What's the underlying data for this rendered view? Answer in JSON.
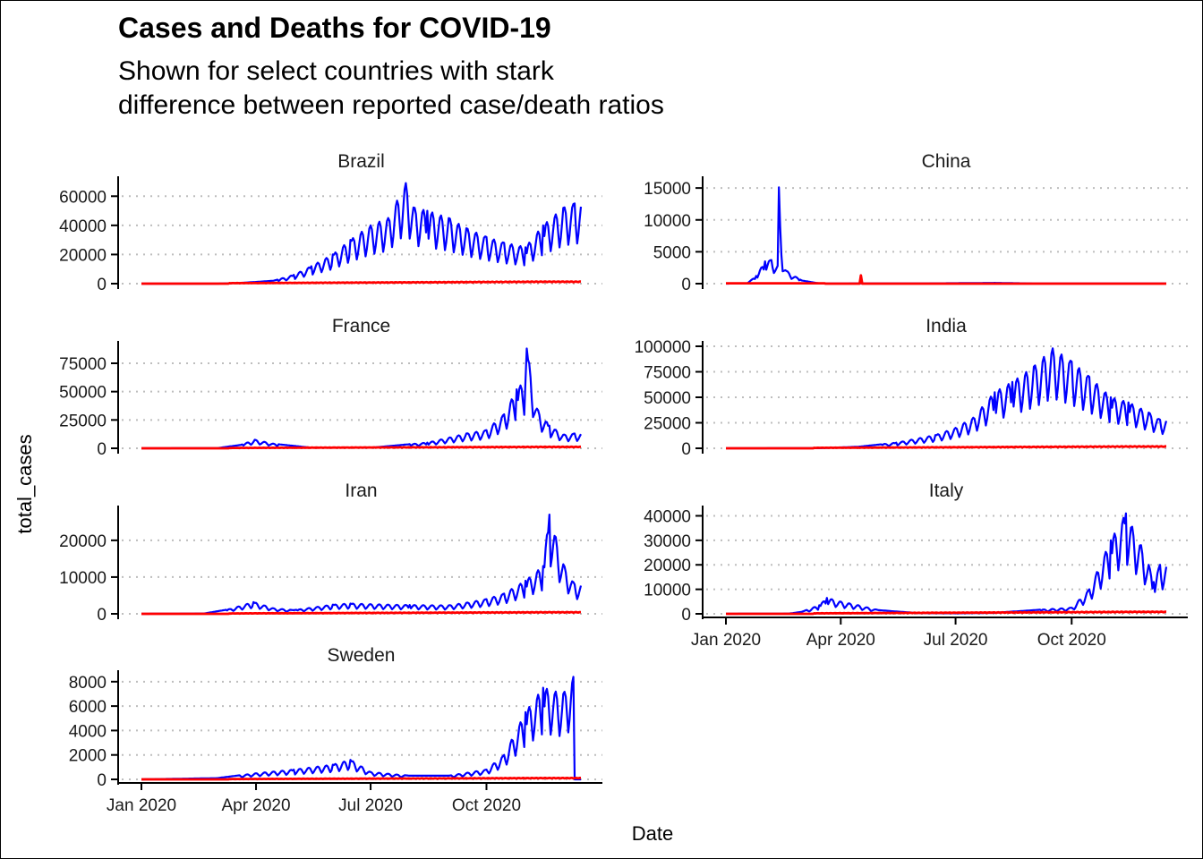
{
  "chart_data": {
    "type": "line",
    "title": "Cases and Deaths for COVID-19",
    "subtitle_lines": [
      "Shown for select countries with stark",
      "difference between reported case/death ratios"
    ],
    "xlabel": "Date",
    "ylabel": "total_cases",
    "x_ticks": [
      "Jan 2020",
      "Apr 2020",
      "Jul 2020",
      "Oct 2020"
    ],
    "x_range": [
      "2020-01-01",
      "2020-12-15"
    ],
    "grid": "horizontal-dotted",
    "legend": "none",
    "colors": {
      "cases": "#0000ff",
      "deaths": "#ff0000",
      "grid": "#bdbdbd"
    },
    "panels": [
      {
        "country": "Brazil",
        "ylim": [
          0,
          70000
        ],
        "y_ticks": [
          "0",
          "20000",
          "40000",
          "60000"
        ],
        "cases_weekly_peaks": [
          [
            "2020-01-01",
            0
          ],
          [
            "2020-03-01",
            0
          ],
          [
            "2020-03-20",
            500
          ],
          [
            "2020-04-15",
            2000
          ],
          [
            "2020-05-01",
            6000
          ],
          [
            "2020-05-15",
            12000
          ],
          [
            "2020-06-01",
            20000
          ],
          [
            "2020-06-15",
            30000
          ],
          [
            "2020-07-01",
            40000
          ],
          [
            "2020-07-15",
            45000
          ],
          [
            "2020-07-29",
            69000
          ],
          [
            "2020-08-05",
            52000
          ],
          [
            "2020-08-15",
            50000
          ],
          [
            "2020-09-01",
            45000
          ],
          [
            "2020-09-15",
            38000
          ],
          [
            "2020-10-01",
            32000
          ],
          [
            "2020-10-15",
            28000
          ],
          [
            "2020-11-01",
            25000
          ],
          [
            "2020-11-15",
            40000
          ],
          [
            "2020-12-01",
            52000
          ],
          [
            "2020-12-10",
            55000
          ]
        ],
        "deaths_peak": 1500
      },
      {
        "country": "China",
        "ylim": [
          0,
          16000
        ],
        "y_ticks": [
          "0",
          "5000",
          "10000",
          "15000"
        ],
        "cases_weekly_peaks": [
          [
            "2020-01-01",
            0
          ],
          [
            "2020-01-18",
            50
          ],
          [
            "2020-01-25",
            1200
          ],
          [
            "2020-02-01",
            3500
          ],
          [
            "2020-02-06",
            3700
          ],
          [
            "2020-02-11",
            2800
          ],
          [
            "2020-02-12",
            15100
          ],
          [
            "2020-02-14",
            4500
          ],
          [
            "2020-02-18",
            2000
          ],
          [
            "2020-03-01",
            500
          ],
          [
            "2020-03-15",
            30
          ],
          [
            "2020-06-15",
            50
          ],
          [
            "2020-08-01",
            120
          ],
          [
            "2020-09-01",
            30
          ],
          [
            "2020-12-10",
            20
          ]
        ],
        "deaths_peak": 1290
      },
      {
        "country": "France",
        "ylim": [
          0,
          90000
        ],
        "y_ticks": [
          "0",
          "25000",
          "50000",
          "75000"
        ],
        "cases_weekly_peaks": [
          [
            "2020-01-01",
            0
          ],
          [
            "2020-03-01",
            100
          ],
          [
            "2020-03-20",
            3000
          ],
          [
            "2020-03-31",
            7500
          ],
          [
            "2020-04-15",
            4000
          ],
          [
            "2020-05-15",
            500
          ],
          [
            "2020-07-01",
            500
          ],
          [
            "2020-08-15",
            5000
          ],
          [
            "2020-09-15",
            13000
          ],
          [
            "2020-10-01",
            16000
          ],
          [
            "2020-10-15",
            30000
          ],
          [
            "2020-10-25",
            52000
          ],
          [
            "2020-11-01",
            60000
          ],
          [
            "2020-11-02",
            88000
          ],
          [
            "2020-11-10",
            35000
          ],
          [
            "2020-11-20",
            20000
          ],
          [
            "2020-12-01",
            12000
          ],
          [
            "2020-12-10",
            13000
          ]
        ],
        "deaths_peak": 1400
      },
      {
        "country": "India",
        "ylim": [
          0,
          100000
        ],
        "y_ticks": [
          "0",
          "25000",
          "50000",
          "75000",
          "100000"
        ],
        "cases_weekly_peaks": [
          [
            "2020-01-01",
            0
          ],
          [
            "2020-03-15",
            100
          ],
          [
            "2020-04-15",
            1500
          ],
          [
            "2020-05-15",
            5500
          ],
          [
            "2020-06-15",
            13000
          ],
          [
            "2020-07-01",
            20000
          ],
          [
            "2020-07-15",
            30000
          ],
          [
            "2020-08-01",
            55000
          ],
          [
            "2020-08-15",
            65000
          ],
          [
            "2020-09-01",
            80000
          ],
          [
            "2020-09-16",
            98000
          ],
          [
            "2020-10-01",
            85000
          ],
          [
            "2020-10-15",
            70000
          ],
          [
            "2020-11-01",
            50000
          ],
          [
            "2020-11-15",
            45000
          ],
          [
            "2020-12-01",
            35000
          ],
          [
            "2020-12-10",
            28000
          ]
        ],
        "deaths_peak": 2000
      },
      {
        "country": "Iran",
        "ylim": [
          0,
          28000
        ],
        "y_ticks": [
          "0",
          "10000",
          "20000"
        ],
        "cases_weekly_peaks": [
          [
            "2020-01-01",
            0
          ],
          [
            "2020-02-20",
            100
          ],
          [
            "2020-03-10",
            1200
          ],
          [
            "2020-03-30",
            3200
          ],
          [
            "2020-04-15",
            1500
          ],
          [
            "2020-05-01",
            1000
          ],
          [
            "2020-06-01",
            2500
          ],
          [
            "2020-06-15",
            2800
          ],
          [
            "2020-07-15",
            2500
          ],
          [
            "2020-08-01",
            2400
          ],
          [
            "2020-09-01",
            2300
          ],
          [
            "2020-09-15",
            3000
          ],
          [
            "2020-10-01",
            4000
          ],
          [
            "2020-10-15",
            5500
          ],
          [
            "2020-11-01",
            9000
          ],
          [
            "2020-11-15",
            13000
          ],
          [
            "2020-11-20",
            27000
          ],
          [
            "2020-12-01",
            13500
          ],
          [
            "2020-12-10",
            8000
          ]
        ],
        "deaths_peak": 480
      },
      {
        "country": "Italy",
        "ylim": [
          0,
          42000
        ],
        "y_ticks": [
          "0",
          "10000",
          "20000",
          "30000",
          "40000"
        ],
        "cases_weekly_peaks": [
          [
            "2020-01-01",
            0
          ],
          [
            "2020-02-20",
            100
          ],
          [
            "2020-03-01",
            800
          ],
          [
            "2020-03-15",
            3500
          ],
          [
            "2020-03-21",
            6500
          ],
          [
            "2020-04-01",
            5000
          ],
          [
            "2020-04-15",
            3500
          ],
          [
            "2020-05-01",
            1500
          ],
          [
            "2020-06-01",
            300
          ],
          [
            "2020-07-01",
            200
          ],
          [
            "2020-08-01",
            400
          ],
          [
            "2020-09-01",
            1500
          ],
          [
            "2020-10-01",
            2500
          ],
          [
            "2020-10-15",
            10000
          ],
          [
            "2020-11-01",
            30000
          ],
          [
            "2020-11-13",
            41000
          ],
          [
            "2020-11-25",
            28000
          ],
          [
            "2020-12-01",
            20000
          ],
          [
            "2020-12-05",
            13000
          ],
          [
            "2020-12-10",
            20000
          ]
        ],
        "deaths_peak": 900
      },
      {
        "country": "Sweden",
        "ylim": [
          0,
          8500
        ],
        "y_ticks": [
          "0",
          "2000",
          "4000",
          "6000",
          "8000"
        ],
        "cases_weekly_peaks": [
          [
            "2020-01-01",
            0
          ],
          [
            "2020-03-01",
            100
          ],
          [
            "2020-04-01",
            500
          ],
          [
            "2020-05-01",
            800
          ],
          [
            "2020-06-01",
            1200
          ],
          [
            "2020-06-15",
            1600
          ],
          [
            "2020-07-01",
            600
          ],
          [
            "2020-08-01",
            300
          ],
          [
            "2020-09-01",
            300
          ],
          [
            "2020-10-01",
            800
          ],
          [
            "2020-10-15",
            2000
          ],
          [
            "2020-11-01",
            5500
          ],
          [
            "2020-11-15",
            7500
          ],
          [
            "2020-12-01",
            7000
          ],
          [
            "2020-12-09",
            8400
          ],
          [
            "2020-12-10",
            0
          ]
        ],
        "deaths_peak": 120
      }
    ]
  }
}
